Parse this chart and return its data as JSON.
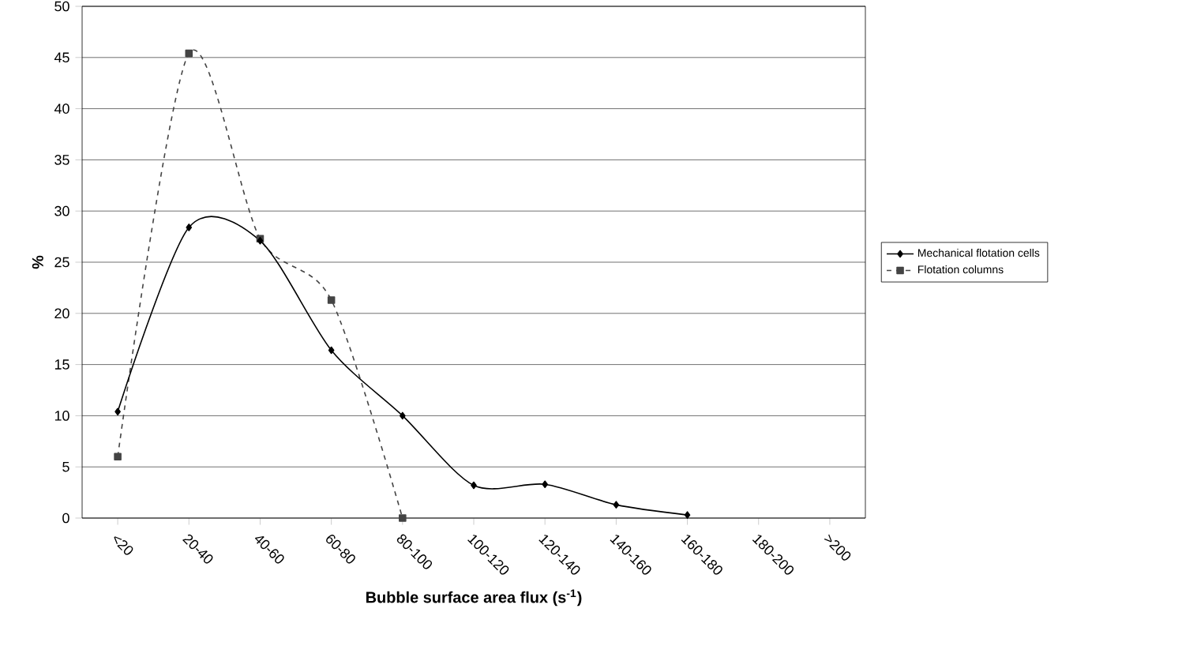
{
  "chart_data": {
    "type": "line",
    "xlabel": "Bubble surface area flux (s$^{-1}$)",
    "ylabel": "%",
    "categories": [
      "<20",
      "20-40",
      "40-60",
      "60-80",
      "80-100",
      "100-120",
      "120-140",
      "140-160",
      "160-180",
      "180-200",
      ">200"
    ],
    "series": [
      {
        "name": "Mechanical flotation cells",
        "color": "#000000",
        "marker": "diamond",
        "line_style": "solid",
        "values": [
          10.4,
          28.4,
          27.1,
          16.4,
          10.0,
          3.2,
          3.3,
          1.3,
          0.3,
          null,
          null
        ]
      },
      {
        "name": "Flotation columns",
        "color": "#444444",
        "marker": "square",
        "line_style": "dashed",
        "values": [
          6.0,
          45.4,
          27.3,
          21.3,
          0,
          null,
          null,
          null,
          null,
          null,
          null
        ]
      }
    ],
    "ylim": [
      0,
      50
    ],
    "yticks": [
      0,
      5,
      10,
      15,
      20,
      25,
      30,
      35,
      40,
      45,
      50
    ],
    "grid": "y",
    "legend": "right"
  }
}
